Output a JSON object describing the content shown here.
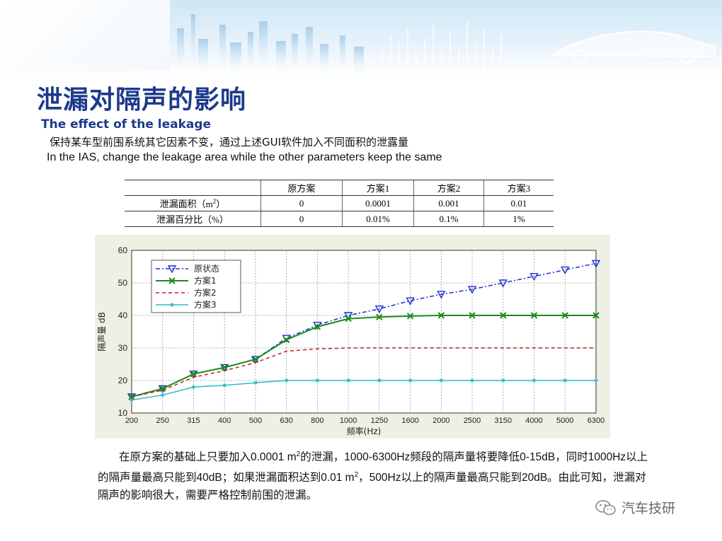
{
  "slide": {
    "title_cn": "泄漏对隔声的影响",
    "title_en": "The effect of the leakage",
    "intro_cn": "保持某车型前围系统其它因素不变，通过上述GUI软件加入不同面积的泄露量",
    "intro_en": "In the IAS, change the leakage area  while the other parameters keep the same"
  },
  "table": {
    "headers": [
      "",
      "原方案",
      "方案1",
      "方案2",
      "方案3"
    ],
    "rows": [
      {
        "label_pre": "泄漏面积（m",
        "label_sup": "2",
        "label_post": "）",
        "cells": [
          "0",
          "0.0001",
          "0.001",
          "0.01"
        ]
      },
      {
        "label_pre": "泄漏百分比（%）",
        "label_sup": "",
        "label_post": "",
        "cells": [
          "0",
          "0.01%",
          "0.1%",
          "1%"
        ]
      }
    ]
  },
  "chart_data": {
    "type": "line",
    "xlabel": "频率(Hz)",
    "ylabel": "隔声量 dB",
    "categories": [
      "200",
      "250",
      "315",
      "400",
      "500",
      "630",
      "800",
      "1000",
      "1250",
      "1600",
      "2000",
      "2500",
      "3150",
      "4000",
      "5000",
      "6300"
    ],
    "ylim": [
      10,
      60
    ],
    "yticks": [
      10,
      20,
      30,
      40,
      50,
      60
    ],
    "grid": true,
    "legend_position": "top-left",
    "series": [
      {
        "name": "原状态",
        "color": "#1f2fd6",
        "dash": "6,3,2,3",
        "marker": "triangle-down",
        "values": [
          15,
          17.5,
          22,
          24,
          26.5,
          33,
          37,
          40,
          42,
          44.5,
          46.5,
          48,
          50,
          52,
          54,
          56
        ]
      },
      {
        "name": "方案1",
        "color": "#1a8c1a",
        "dash": "",
        "marker": "x",
        "values": [
          15,
          17.5,
          22,
          24,
          26.5,
          32.5,
          36.5,
          39,
          39.5,
          39.8,
          40,
          40,
          40,
          40,
          40,
          40
        ]
      },
      {
        "name": "方案2",
        "color": "#cc1a1a",
        "dash": "5,4",
        "marker": "none",
        "values": [
          15,
          17,
          21,
          23,
          25.5,
          29,
          29.7,
          30,
          30,
          30,
          30,
          30,
          30,
          30,
          30,
          30
        ]
      },
      {
        "name": "方案3",
        "color": "#2eb8c8",
        "dash": "",
        "marker": "star",
        "values": [
          14,
          15.5,
          18,
          18.5,
          19.3,
          20,
          20,
          20,
          20,
          20,
          20,
          20,
          20,
          20,
          20,
          20
        ]
      }
    ]
  },
  "summary": {
    "line1_pre": "在原方案的基础上只要加入0.0001 m",
    "line1_sup": "2",
    "line1_post": "的泄漏，1000-6300Hz频段的隔声量将要降低0-15dB，同时1000Hz以上的隔声量最高只能到40dB；如果泄漏面积达到0.01 m",
    "line1_sup2": "2",
    "line1_end": "，500Hz以上的隔声量最高只能到20dB。由此可知，泄漏对隔声的影响很大，需要严格控制前围的泄漏。"
  },
  "watermark": {
    "label": "汽车技研",
    "icon": "wechat-icon"
  }
}
